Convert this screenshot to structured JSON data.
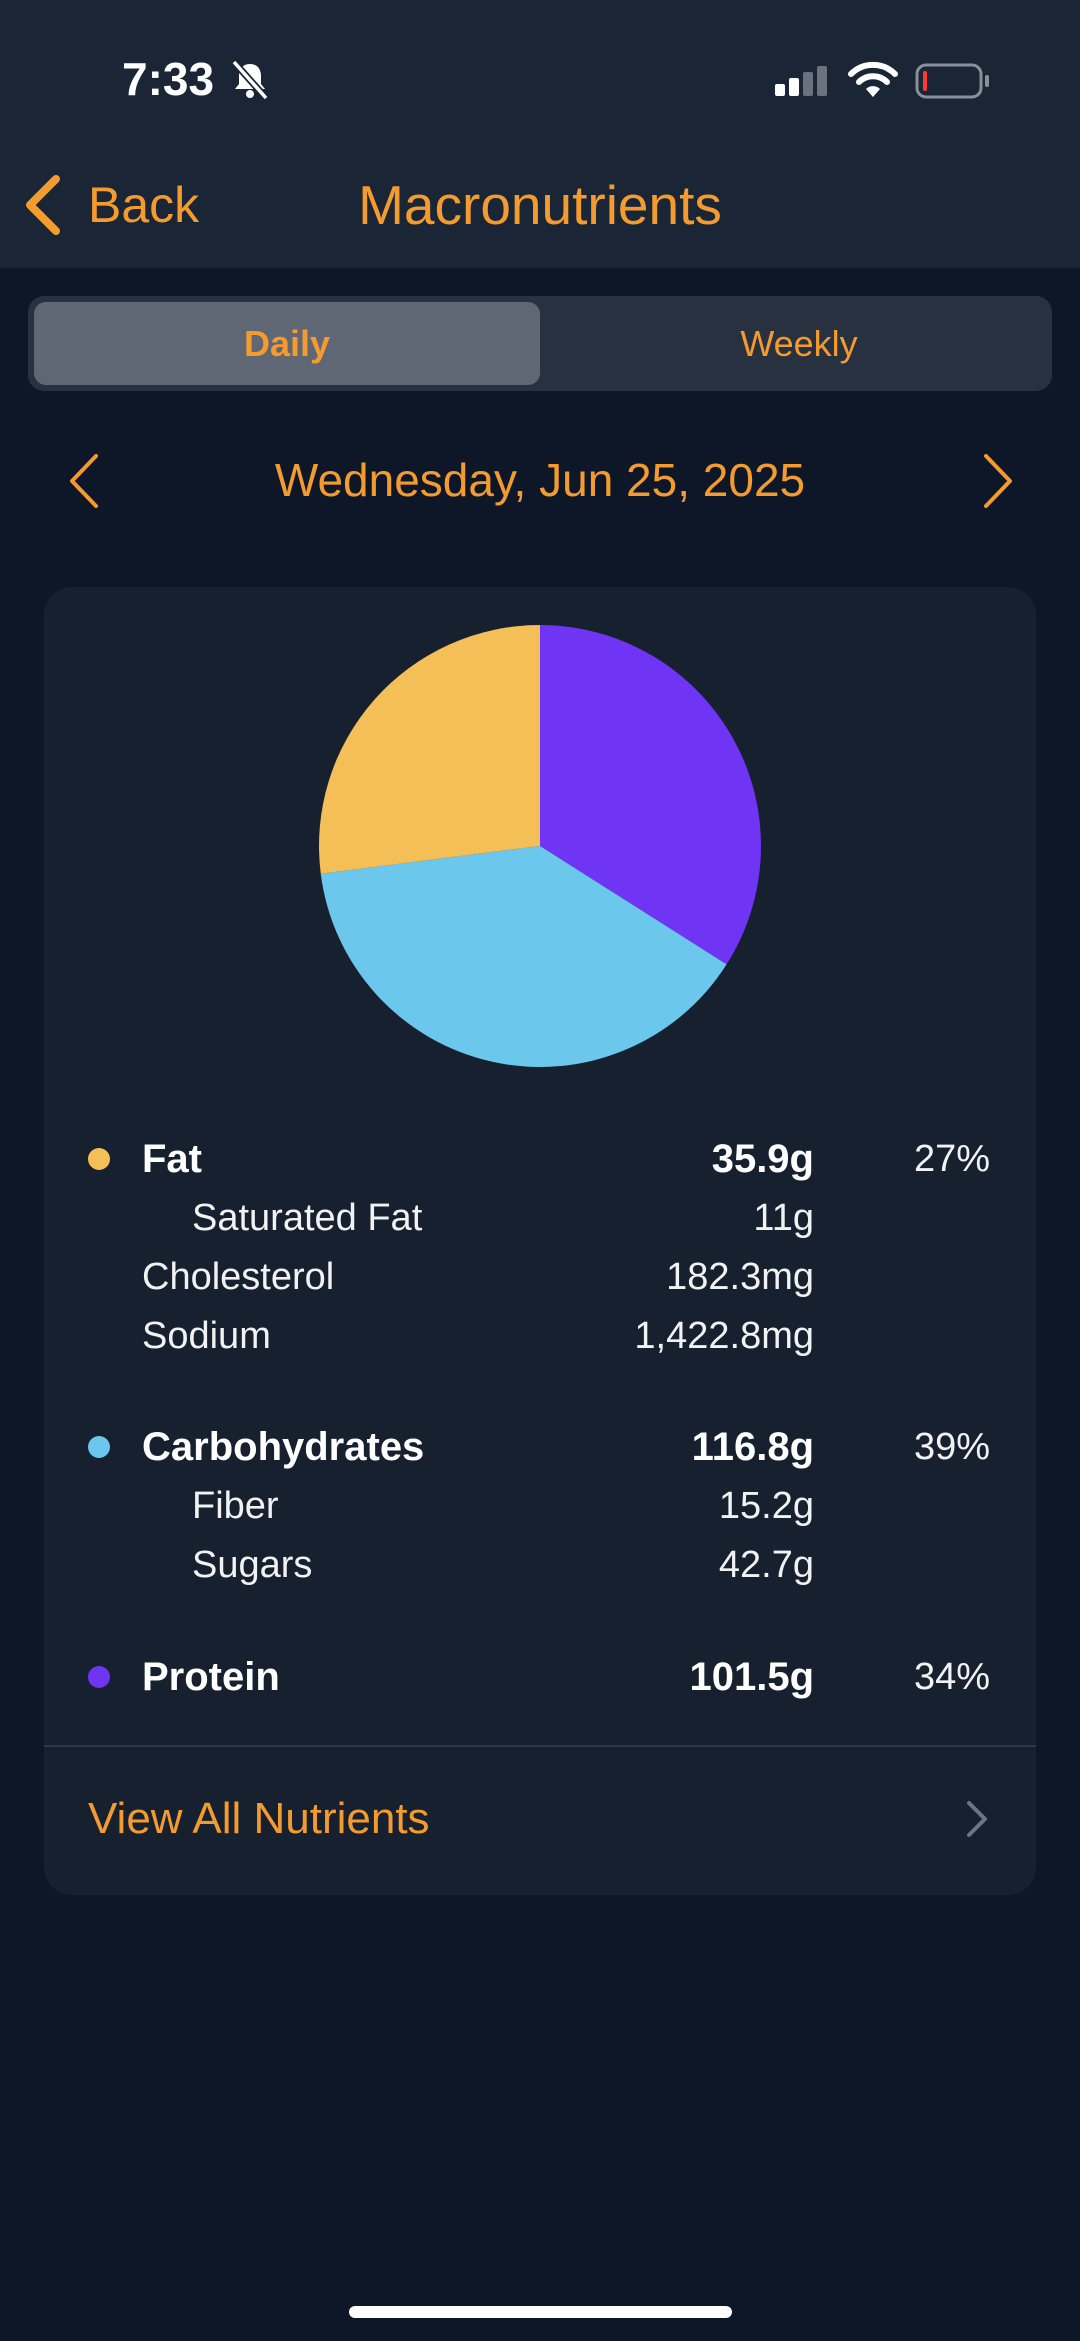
{
  "status_bar": {
    "time": "7:33"
  },
  "header": {
    "back_label": "Back",
    "title": "Macronutrients"
  },
  "tabs": [
    {
      "label": "Daily",
      "selected": true
    },
    {
      "label": "Weekly",
      "selected": false
    }
  ],
  "date": {
    "label": "Wednesday, Jun 25, 2025"
  },
  "colors": {
    "accent": "#f39b2e",
    "fat": "#f4bf57",
    "carbohydrates": "#6bc8ec",
    "protein": "#7034f5"
  },
  "nutrients": {
    "fat": {
      "name": "Fat",
      "amount": "35.9g",
      "percent": "27%"
    },
    "saturated_fat": {
      "name": "Saturated Fat",
      "amount": "11g"
    },
    "cholesterol": {
      "name": "Cholesterol",
      "amount": "182.3mg"
    },
    "sodium": {
      "name": "Sodium",
      "amount": "1,422.8mg"
    },
    "carbohydrates": {
      "name": "Carbohydrates",
      "amount": "116.8g",
      "percent": "39%"
    },
    "fiber": {
      "name": "Fiber",
      "amount": "15.2g"
    },
    "sugars": {
      "name": "Sugars",
      "amount": "42.7g"
    },
    "protein": {
      "name": "Protein",
      "amount": "101.5g",
      "percent": "34%"
    }
  },
  "chart_data": {
    "type": "pie",
    "categories": [
      "Protein",
      "Carbohydrates",
      "Fat"
    ],
    "values": [
      34,
      39,
      27
    ],
    "colors": [
      "#7034f5",
      "#6bc8ec",
      "#f4bf57"
    ]
  },
  "footer": {
    "view_all_label": "View All Nutrients"
  }
}
